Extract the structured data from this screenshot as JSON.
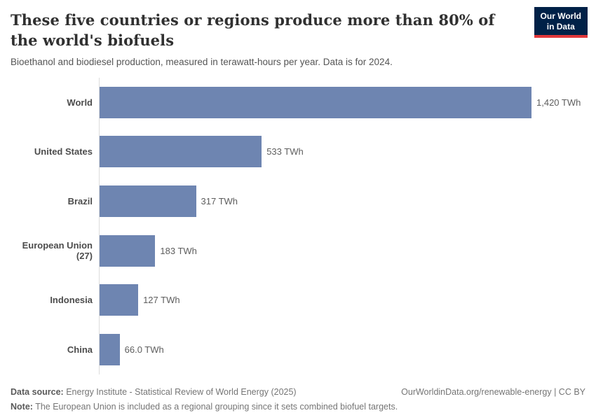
{
  "header": {
    "title": "These five countries or regions produce more than 80% of the world's biofuels",
    "subtitle": "Bioethanol and biodiesel production, measured in terawatt-hours per year. Data is for 2024.",
    "logo": {
      "line1": "Our World",
      "line2": "in Data",
      "bg_color": "#002147",
      "stripe_color": "#e0373a"
    }
  },
  "chart_data": {
    "type": "bar",
    "orientation": "horizontal",
    "categories": [
      "World",
      "United States",
      "Brazil",
      "European Union (27)",
      "Indonesia",
      "China"
    ],
    "values": [
      1420,
      533,
      317,
      183,
      127,
      66.0
    ],
    "value_labels": [
      "1,420 TWh",
      "533 TWh",
      "317 TWh",
      "183 TWh",
      "127 TWh",
      "66.0 TWh"
    ],
    "unit": "TWh",
    "title": "These five countries or regions produce more than 80% of the world's biofuels",
    "subtitle": "Bioethanol and biodiesel production, measured in terawatt-hours per year. Data is for 2024.",
    "xlabel": "",
    "ylabel": "",
    "xlim": [
      0,
      1420
    ],
    "grid": false,
    "legend": "none",
    "bar_color": "#6e85b1",
    "axis_line_color": "#dcdcdc"
  },
  "footer": {
    "datasource_label": "Data source:",
    "datasource_text": " Energy Institute - Statistical Review of World Energy (2025)",
    "note_label": "Note:",
    "note_text": " The European Union is included as a regional grouping since it sets combined biofuel targets.",
    "link_text": "OurWorldinData.org/renewable-energy | CC BY"
  }
}
